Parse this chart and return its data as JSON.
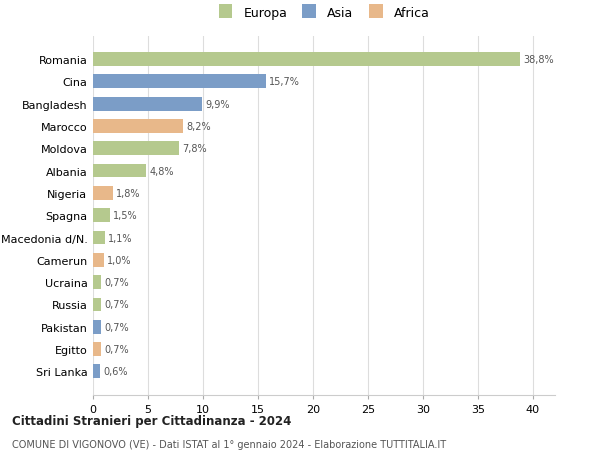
{
  "countries": [
    "Romania",
    "Cina",
    "Bangladesh",
    "Marocco",
    "Moldova",
    "Albania",
    "Nigeria",
    "Spagna",
    "Macedonia d/N.",
    "Camerun",
    "Ucraina",
    "Russia",
    "Pakistan",
    "Egitto",
    "Sri Lanka"
  ],
  "values": [
    38.8,
    15.7,
    9.9,
    8.2,
    7.8,
    4.8,
    1.8,
    1.5,
    1.1,
    1.0,
    0.7,
    0.7,
    0.7,
    0.7,
    0.6
  ],
  "labels": [
    "38,8%",
    "15,7%",
    "9,9%",
    "8,2%",
    "7,8%",
    "4,8%",
    "1,8%",
    "1,5%",
    "1,1%",
    "1,0%",
    "0,7%",
    "0,7%",
    "0,7%",
    "0,7%",
    "0,6%"
  ],
  "continents": [
    "Europa",
    "Asia",
    "Asia",
    "Africa",
    "Europa",
    "Europa",
    "Africa",
    "Europa",
    "Europa",
    "Africa",
    "Europa",
    "Europa",
    "Asia",
    "Africa",
    "Asia"
  ],
  "colors": {
    "Europa": "#b5c98e",
    "Asia": "#7b9dc7",
    "Africa": "#e8b88a"
  },
  "legend_marker_colors": {
    "Europa": "#b5c98e",
    "Asia": "#7b9dc7",
    "Africa": "#e8b88a"
  },
  "title1": "Cittadini Stranieri per Cittadinanza - 2024",
  "title2": "COMUNE DI VIGONOVO (VE) - Dati ISTAT al 1° gennaio 2024 - Elaborazione TUTTITALIA.IT",
  "xlim": [
    0,
    42
  ],
  "xticks": [
    0,
    5,
    10,
    15,
    20,
    25,
    30,
    35,
    40
  ],
  "background_color": "#ffffff",
  "grid_color": "#dddddd",
  "bar_height": 0.62
}
